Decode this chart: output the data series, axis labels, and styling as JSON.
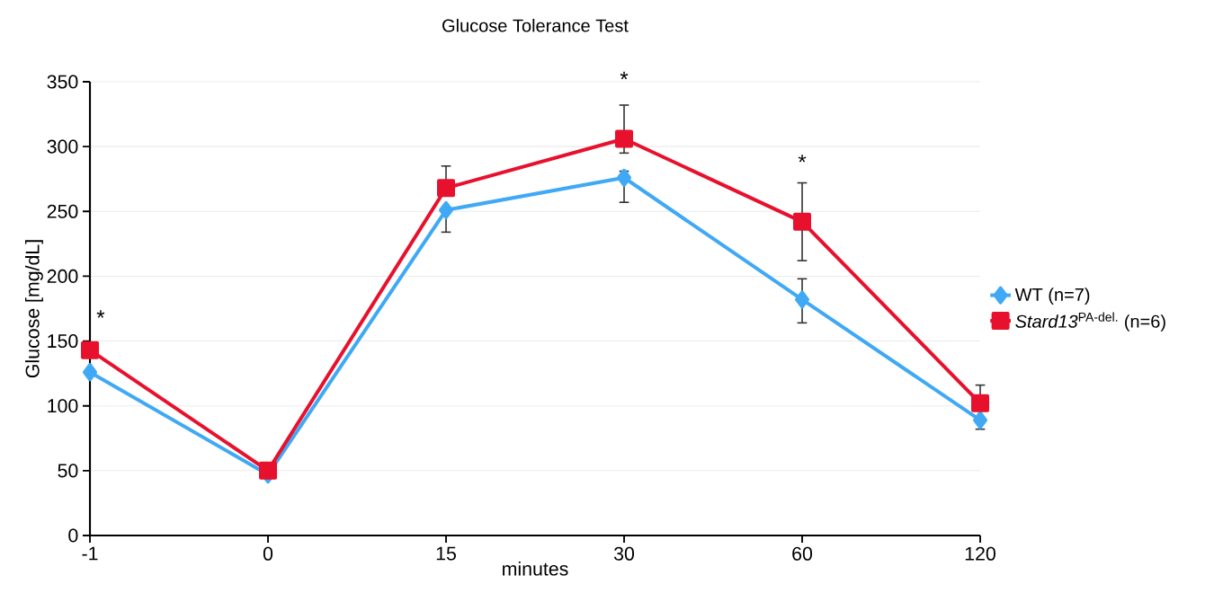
{
  "chart_data": {
    "type": "line",
    "title": "Glucose Tolerance Test",
    "xlabel": "minutes",
    "ylabel": "Glucose [mg/dL]",
    "categories": [
      "-1",
      "0",
      "15",
      "30",
      "60",
      "120"
    ],
    "series": [
      {
        "name": "WT (n=7)",
        "color": "#3fa9f5",
        "marker": "diamond",
        "values": [
          126,
          47,
          251,
          276,
          182,
          89
        ],
        "errors": [
          null,
          null,
          [
            234,
            251
          ],
          [
            257,
            281
          ],
          [
            164,
            198
          ],
          [
            82,
            89
          ]
        ]
      },
      {
        "name": "*Stard13*$^{PA-del.}$ (n=6)",
        "color": "#e8112d",
        "marker": "square",
        "values": [
          143,
          50,
          268,
          306,
          242,
          102
        ],
        "errors": [
          null,
          null,
          [
            268,
            285
          ],
          [
            295,
            332
          ],
          [
            212,
            272
          ],
          [
            102,
            116
          ]
        ]
      }
    ],
    "ylim": [
      0,
      350
    ],
    "yticks": [
      0,
      50,
      100,
      150,
      200,
      250,
      300,
      350
    ],
    "grid": "y",
    "legend": "right",
    "line_style": "solid",
    "annotations": [
      "*",
      "*",
      "*"
    ]
  }
}
